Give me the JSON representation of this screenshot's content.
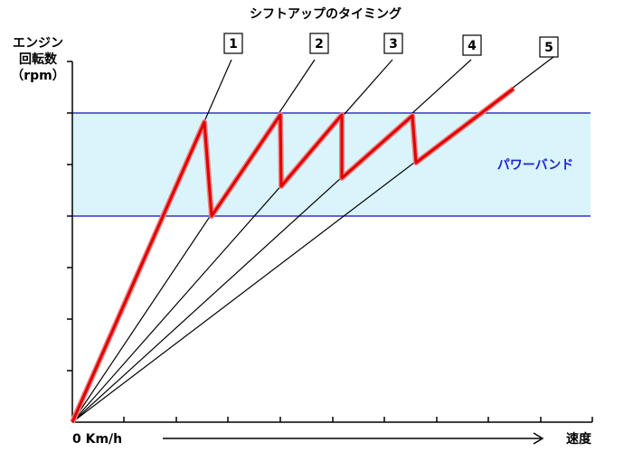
{
  "title": "シフトアップのタイミング",
  "y_axis_label": [
    "エンジン",
    "回転数",
    "（rpm）"
  ],
  "gears": [
    "1",
    "2",
    "3",
    "4",
    "5"
  ],
  "band_label": "パワーバンド",
  "x_origin_label": "0 Km/h",
  "x_axis_label": "速度"
}
